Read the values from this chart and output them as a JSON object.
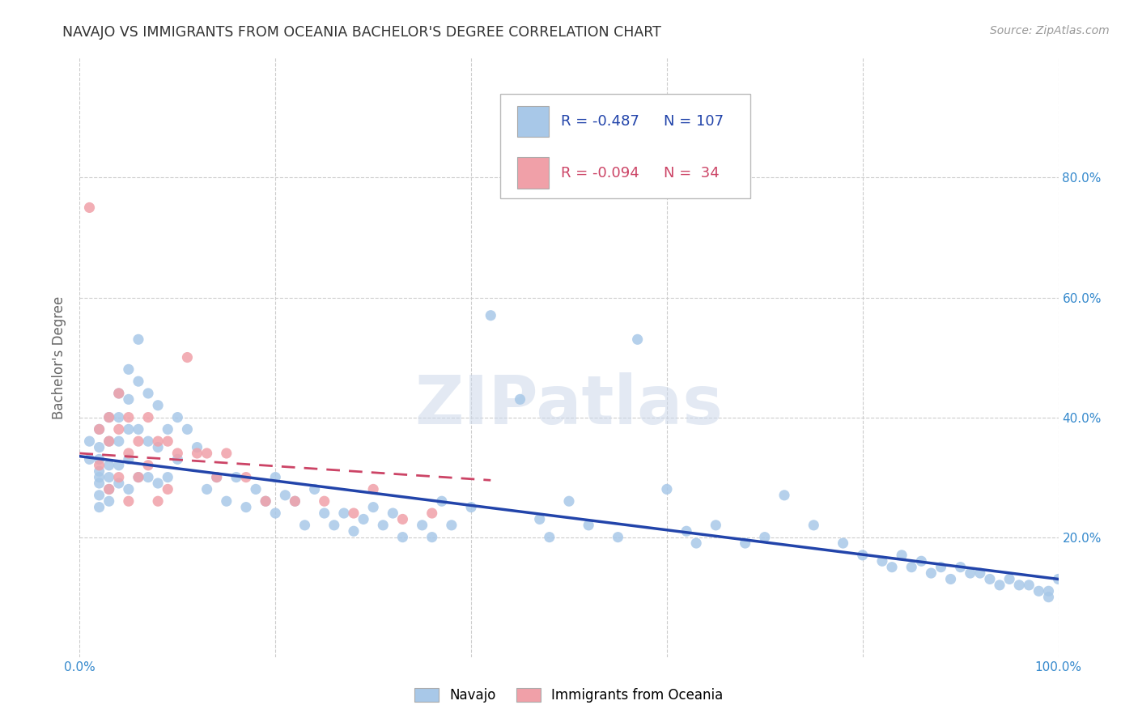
{
  "title": "NAVAJO VS IMMIGRANTS FROM OCEANIA BACHELOR'S DEGREE CORRELATION CHART",
  "source": "Source: ZipAtlas.com",
  "ylabel": "Bachelor's Degree",
  "watermark": "ZIPatlas",
  "legend_blue_r": "-0.487",
  "legend_blue_n": "107",
  "legend_pink_r": "-0.094",
  "legend_pink_n": "34",
  "legend_label_blue": "Navajo",
  "legend_label_pink": "Immigrants from Oceania",
  "xlim": [
    0,
    1.0
  ],
  "ylim": [
    0,
    1.0
  ],
  "xticks": [
    0.0,
    0.2,
    0.4,
    0.6,
    0.8,
    1.0
  ],
  "yticks": [
    0.2,
    0.4,
    0.6,
    0.8
  ],
  "xtick_labels": [
    "0.0%",
    "",
    "",
    "",
    "",
    "100.0%"
  ],
  "right_ytick_labels": [
    "20.0%",
    "40.0%",
    "60.0%",
    "80.0%"
  ],
  "right_yticks": [
    0.2,
    0.4,
    0.6,
    0.8
  ],
  "blue_scatter_color": "#a8c8e8",
  "pink_scatter_color": "#f0a0a8",
  "blue_line_color": "#2244aa",
  "pink_line_color": "#cc4466",
  "grid_color": "#cccccc",
  "background_color": "#ffffff",
  "title_color": "#333333",
  "axis_label_color": "#666666",
  "tick_color": "#3388cc",
  "blue_line_x0": 0.0,
  "blue_line_y0": 0.335,
  "blue_line_x1": 1.0,
  "blue_line_y1": 0.13,
  "pink_line_x0": 0.0,
  "pink_line_y0": 0.34,
  "pink_line_x1": 0.42,
  "pink_line_y1": 0.295,
  "navajo_x": [
    0.01,
    0.01,
    0.02,
    0.02,
    0.02,
    0.02,
    0.02,
    0.02,
    0.02,
    0.02,
    0.03,
    0.03,
    0.03,
    0.03,
    0.03,
    0.03,
    0.04,
    0.04,
    0.04,
    0.04,
    0.04,
    0.05,
    0.05,
    0.05,
    0.05,
    0.05,
    0.06,
    0.06,
    0.06,
    0.06,
    0.07,
    0.07,
    0.07,
    0.08,
    0.08,
    0.08,
    0.09,
    0.09,
    0.1,
    0.1,
    0.11,
    0.12,
    0.13,
    0.14,
    0.15,
    0.16,
    0.17,
    0.18,
    0.19,
    0.2,
    0.2,
    0.21,
    0.22,
    0.23,
    0.24,
    0.25,
    0.26,
    0.27,
    0.28,
    0.29,
    0.3,
    0.31,
    0.32,
    0.33,
    0.35,
    0.36,
    0.37,
    0.38,
    0.4,
    0.42,
    0.45,
    0.47,
    0.48,
    0.5,
    0.52,
    0.55,
    0.57,
    0.6,
    0.62,
    0.63,
    0.65,
    0.68,
    0.7,
    0.72,
    0.75,
    0.78,
    0.8,
    0.82,
    0.83,
    0.84,
    0.85,
    0.86,
    0.87,
    0.88,
    0.89,
    0.9,
    0.91,
    0.92,
    0.93,
    0.94,
    0.95,
    0.96,
    0.97,
    0.98,
    0.99,
    0.99,
    1.0
  ],
  "navajo_y": [
    0.36,
    0.33,
    0.38,
    0.35,
    0.31,
    0.29,
    0.27,
    0.25,
    0.33,
    0.3,
    0.4,
    0.36,
    0.32,
    0.3,
    0.28,
    0.26,
    0.44,
    0.4,
    0.36,
    0.32,
    0.29,
    0.48,
    0.43,
    0.38,
    0.33,
    0.28,
    0.53,
    0.46,
    0.38,
    0.3,
    0.44,
    0.36,
    0.3,
    0.42,
    0.35,
    0.29,
    0.38,
    0.3,
    0.4,
    0.33,
    0.38,
    0.35,
    0.28,
    0.3,
    0.26,
    0.3,
    0.25,
    0.28,
    0.26,
    0.3,
    0.24,
    0.27,
    0.26,
    0.22,
    0.28,
    0.24,
    0.22,
    0.24,
    0.21,
    0.23,
    0.25,
    0.22,
    0.24,
    0.2,
    0.22,
    0.2,
    0.26,
    0.22,
    0.25,
    0.57,
    0.43,
    0.23,
    0.2,
    0.26,
    0.22,
    0.2,
    0.53,
    0.28,
    0.21,
    0.19,
    0.22,
    0.19,
    0.2,
    0.27,
    0.22,
    0.19,
    0.17,
    0.16,
    0.15,
    0.17,
    0.15,
    0.16,
    0.14,
    0.15,
    0.13,
    0.15,
    0.14,
    0.14,
    0.13,
    0.12,
    0.13,
    0.12,
    0.12,
    0.11,
    0.11,
    0.1,
    0.13
  ],
  "oceania_x": [
    0.01,
    0.02,
    0.02,
    0.03,
    0.03,
    0.03,
    0.04,
    0.04,
    0.04,
    0.05,
    0.05,
    0.05,
    0.06,
    0.06,
    0.07,
    0.07,
    0.08,
    0.08,
    0.09,
    0.09,
    0.1,
    0.11,
    0.12,
    0.13,
    0.14,
    0.15,
    0.17,
    0.19,
    0.22,
    0.25,
    0.28,
    0.3,
    0.33,
    0.36
  ],
  "oceania_y": [
    0.75,
    0.38,
    0.32,
    0.4,
    0.36,
    0.28,
    0.44,
    0.38,
    0.3,
    0.4,
    0.34,
    0.26,
    0.36,
    0.3,
    0.4,
    0.32,
    0.36,
    0.26,
    0.36,
    0.28,
    0.34,
    0.5,
    0.34,
    0.34,
    0.3,
    0.34,
    0.3,
    0.26,
    0.26,
    0.26,
    0.24,
    0.28,
    0.23,
    0.24
  ]
}
